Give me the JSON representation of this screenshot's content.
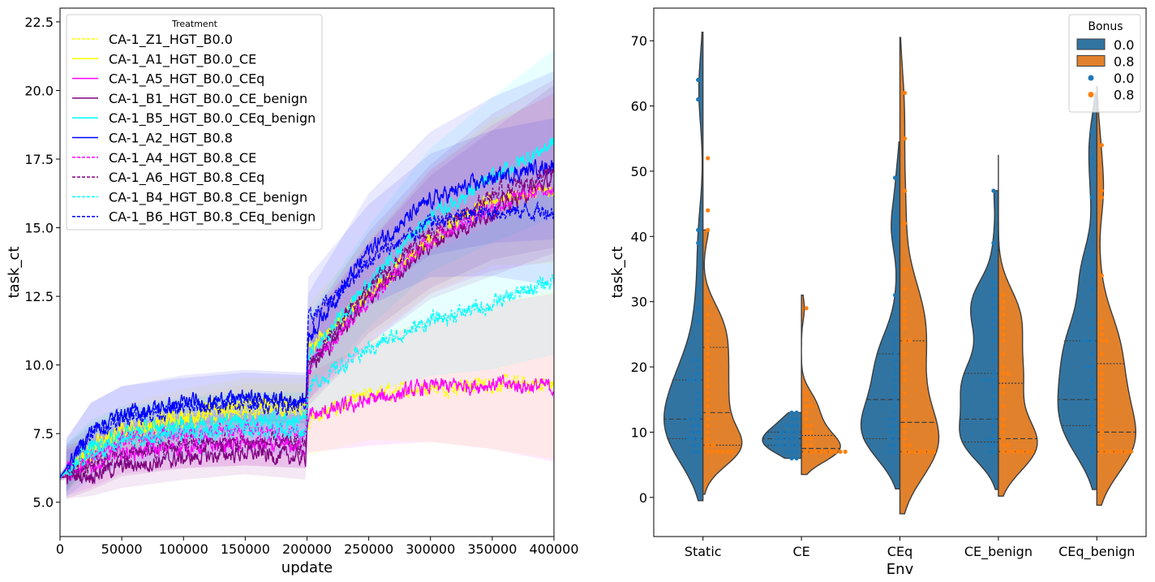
{
  "chart_data": [
    {
      "type": "line",
      "title": "",
      "xlabel": "update",
      "ylabel": "task_ct",
      "xlim": [
        0,
        400000
      ],
      "ylim": [
        3.75,
        23.0
      ],
      "xticks": [
        0,
        50000,
        100000,
        150000,
        200000,
        250000,
        300000,
        350000,
        400000
      ],
      "xtick_labels": [
        "0",
        "50000",
        "100000",
        "150000",
        "200000",
        "250000",
        "300000",
        "350000",
        "400000"
      ],
      "yticks": [
        5.0,
        7.5,
        10.0,
        12.5,
        15.0,
        17.5,
        20.0,
        22.5
      ],
      "ytick_labels": [
        "5.0",
        "7.5",
        "10.0",
        "12.5",
        "15.0",
        "17.5",
        "20.0",
        "22.5"
      ],
      "grid": false,
      "legend": {
        "title": "Treatment",
        "placement": "top-left"
      },
      "x": [
        0,
        25000,
        50000,
        100000,
        150000,
        199000,
        201000,
        250000,
        300000,
        350000,
        400000
      ],
      "series": [
        {
          "name": "CA-1_Z1_HGT_B0.0",
          "color": "#ffff00",
          "style": "dashed",
          "values": [
            5.9,
            6.8,
            7.4,
            7.9,
            8.4,
            8.4,
            8.0,
            8.9,
            9.2,
            9.3,
            9.3
          ]
        },
        {
          "name": "CA-1_A1_HGT_B0.0_CE",
          "color": "#ffff00",
          "style": "solid",
          "values": [
            5.9,
            7.0,
            7.6,
            8.2,
            8.6,
            8.6,
            10.6,
            12.6,
            14.6,
            16.0,
            16.4
          ]
        },
        {
          "name": "CA-1_A5_HGT_B0.0_CEq",
          "color": "#ff00ff",
          "style": "solid",
          "values": [
            5.9,
            6.3,
            6.8,
            7.0,
            7.1,
            7.0,
            8.1,
            8.7,
            9.2,
            9.3,
            9.2
          ]
        },
        {
          "name": "CA-1_B1_HGT_B0.0_CE_benign",
          "color": "#800080",
          "style": "solid",
          "values": [
            5.9,
            6.0,
            6.3,
            6.6,
            6.8,
            6.6,
            9.8,
            12.4,
            14.4,
            15.6,
            16.8
          ]
        },
        {
          "name": "CA-1_B5_HGT_B0.0_CEq_benign",
          "color": "#00ffff",
          "style": "solid",
          "values": [
            5.9,
            7.0,
            7.5,
            7.8,
            8.0,
            8.0,
            10.2,
            13.0,
            15.4,
            16.8,
            18.1
          ]
        },
        {
          "name": "CA-1_A2_HGT_B0.8",
          "color": "#0000ff",
          "style": "solid",
          "values": [
            5.9,
            7.6,
            8.2,
            8.6,
            8.8,
            8.7,
            11.0,
            14.2,
            16.0,
            16.8,
            17.3
          ]
        },
        {
          "name": "CA-1_A4_HGT_B0.8_CE",
          "color": "#ff00ff",
          "style": "dashed",
          "values": [
            5.9,
            6.7,
            7.2,
            7.5,
            7.6,
            7.5,
            10.0,
            12.4,
            14.6,
            15.8,
            16.5
          ]
        },
        {
          "name": "CA-1_A6_HGT_B0.8_CEq",
          "color": "#800080",
          "style": "dashed",
          "values": [
            5.9,
            6.3,
            6.8,
            7.1,
            7.2,
            7.1,
            10.0,
            12.8,
            14.8,
            16.2,
            17.0
          ]
        },
        {
          "name": "CA-1_B4_HGT_B0.8_CE_benign",
          "color": "#00ffff",
          "style": "dashed",
          "values": [
            5.9,
            6.7,
            7.2,
            7.5,
            7.7,
            7.6,
            9.2,
            10.6,
            11.6,
            12.2,
            13.1
          ]
        },
        {
          "name": "CA-1_B6_HGT_B0.8_CEq_benign",
          "color": "#0000ff",
          "style": "dashed",
          "values": [
            5.9,
            7.5,
            8.1,
            8.4,
            8.6,
            8.5,
            11.6,
            13.8,
            15.2,
            15.6,
            15.6
          ]
        }
      ]
    },
    {
      "type": "violin",
      "title": "",
      "xlabel": "Env",
      "ylabel": "task_ct",
      "categories": [
        "Static",
        "CE",
        "CEq",
        "CE_benign",
        "CEq_benign"
      ],
      "ylim": [
        -6,
        75
      ],
      "yticks": [
        0,
        10,
        20,
        30,
        40,
        50,
        60,
        70
      ],
      "ytick_labels": [
        "0",
        "10",
        "20",
        "30",
        "40",
        "50",
        "60",
        "70"
      ],
      "grid": false,
      "legend": {
        "title": "Bonus",
        "placement": "top-right",
        "entries": [
          {
            "label": "0.0",
            "kind": "patch",
            "color": "#1f77b4"
          },
          {
            "label": "0.8",
            "kind": "patch",
            "color": "#ff7f0e"
          },
          {
            "label": "0.0",
            "kind": "point",
            "color": "#1f77b4"
          },
          {
            "label": "0.8",
            "kind": "point",
            "color": "#ff7f0e"
          }
        ]
      },
      "groups": [
        {
          "category": "Static",
          "left": {
            "bonus": "0.0",
            "range": [
              -0.5,
              71.3
            ],
            "quartiles": [
              9,
              12,
              18
            ],
            "points": [
              64,
              61,
              41,
              39,
              32,
              29,
              27,
              21,
              21,
              20,
              19,
              18,
              18,
              18,
              16,
              15,
              14,
              13,
              12,
              12,
              12,
              11,
              11,
              10,
              10,
              9,
              9,
              9,
              8,
              8,
              7,
              7
            ]
          },
          "right": {
            "bonus": "0.8",
            "range": [
              0.5,
              41
            ],
            "quartiles": [
              8,
              13,
              23
            ],
            "points": [
              52,
              44,
              41,
              30,
              28,
              27,
              26,
              25,
              24,
              23,
              22,
              21,
              20,
              19,
              18,
              17,
              16,
              15,
              14,
              13,
              12,
              11,
              10,
              9,
              8,
              8,
              7,
              7,
              7,
              7,
              7,
              7
            ]
          }
        },
        {
          "category": "CE",
          "left": {
            "bonus": "0.0",
            "range": [
              6,
              13
            ],
            "quartiles": [
              8,
              9,
              10
            ],
            "points": [
              13,
              13,
              12,
              12,
              11,
              11,
              11,
              10,
              10,
              10,
              10,
              9,
              9,
              9,
              9,
              9,
              8,
              8,
              8,
              8,
              8,
              7,
              7,
              7,
              6,
              6
            ]
          },
          "right": {
            "bonus": "0.8",
            "range": [
              3.5,
              31
            ],
            "quartiles": [
              7,
              7.5,
              9.5
            ],
            "points": [
              29,
              16,
              15,
              14,
              14,
              13,
              12,
              11,
              11,
              10,
              10,
              9,
              9,
              8,
              8,
              7,
              7,
              7,
              7,
              7,
              7,
              7,
              7,
              7
            ]
          }
        },
        {
          "category": "CEq",
          "left": {
            "bonus": "0.0",
            "range": [
              1.3,
              54.5
            ],
            "quartiles": [
              9,
              15,
              22
            ],
            "points": [
              49,
              43,
              41,
              40,
              31,
              25,
              24,
              23,
              22,
              21,
              20,
              19,
              18,
              17,
              16,
              15,
              14,
              13,
              12,
              12,
              11,
              11,
              10,
              10,
              9,
              9,
              8,
              8,
              7,
              7
            ]
          },
          "right": {
            "bonus": "0.8",
            "range": [
              -2.5,
              70.5
            ],
            "quartiles": [
              7,
              11.5,
              24
            ],
            "points": [
              62,
              55,
              47,
              42,
              35,
              32,
              30,
              29,
              28,
              27,
              26,
              24,
              24,
              22,
              20,
              19,
              18,
              16,
              14,
              12,
              11,
              10,
              9,
              8,
              8,
              7,
              7,
              7,
              7,
              7,
              7,
              7
            ]
          }
        },
        {
          "category": "CE_benign",
          "left": {
            "bonus": "0.0",
            "range": [
              1.2,
              47
            ],
            "quartiles": [
              8.5,
              12,
              19
            ],
            "points": [
              47,
              39,
              33,
              32,
              31,
              30,
              29,
              28,
              27,
              26,
              24,
              22,
              21,
              19,
              18,
              18,
              18,
              17,
              16,
              15,
              14,
              13,
              12,
              11,
              10,
              9,
              9,
              8,
              8,
              7,
              7
            ]
          },
          "right": {
            "bonus": "0.8",
            "range": [
              0.2,
              52.5
            ],
            "quartiles": [
              7,
              9,
              17.5
            ],
            "points": [
              31,
              30,
              29,
              28,
              27,
              26,
              25,
              24,
              22,
              20,
              19,
              19,
              18,
              17,
              16,
              14,
              12,
              11,
              10,
              9,
              8,
              8,
              7,
              7,
              7,
              7,
              7,
              7,
              7
            ]
          }
        },
        {
          "category": "CEq_benign",
          "left": {
            "bonus": "0.0",
            "range": [
              1.2,
              62
            ],
            "quartiles": [
              11,
              15,
              24
            ],
            "points": [
              56,
              52,
              46,
              37,
              35,
              34,
              32,
              28,
              26,
              24,
              24,
              24,
              22,
              20,
              20,
              18,
              17,
              16,
              15,
              14,
              13,
              12,
              11,
              10,
              9,
              8,
              7
            ]
          },
          "right": {
            "bonus": "0.8",
            "range": [
              -1.2,
              63
            ],
            "quartiles": [
              7,
              10,
              20.5
            ],
            "points": [
              54,
              47,
              46,
              34,
              27,
              26,
              25,
              24,
              24,
              22,
              20,
              19,
              18,
              17,
              16,
              15,
              14,
              13,
              12,
              11,
              10,
              9,
              8,
              7,
              7,
              7,
              7,
              7,
              7,
              7
            ]
          }
        }
      ]
    }
  ]
}
